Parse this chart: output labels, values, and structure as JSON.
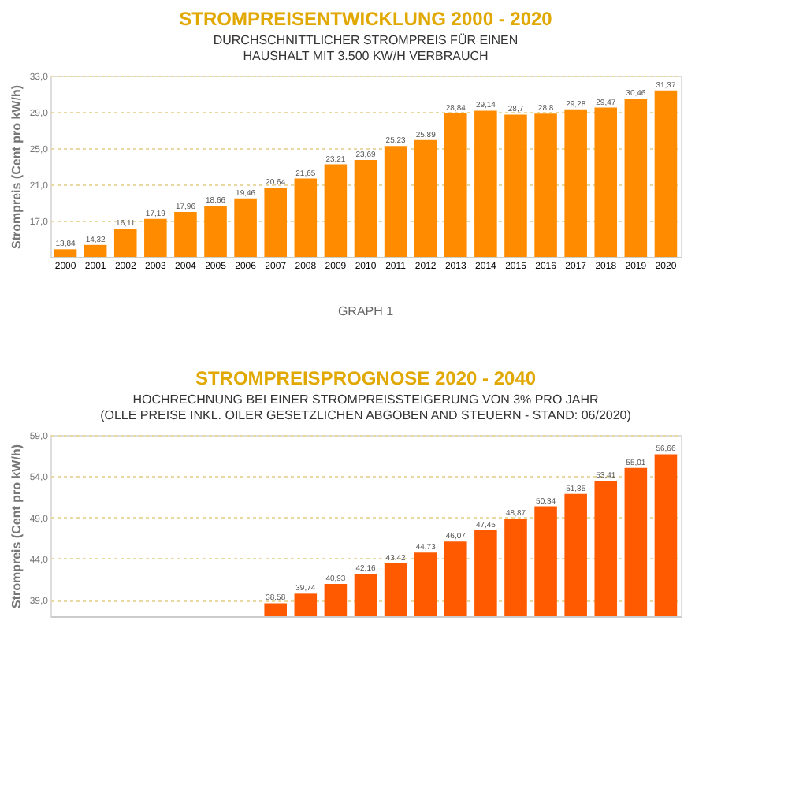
{
  "chart_data": [
    {
      "type": "bar",
      "title": "STROMPREISENTWICKLUNG 2000 - 2020",
      "subtitle": "DURCHSCHNITTLICHER STROMPREIS FÜR EINEN\nHAUSHALT MIT 3.500 KW/H VERBRAUCH",
      "ylabel": "Strompreis (Cent pro kW/h)",
      "categories": [
        "2000",
        "2001",
        "2002",
        "2003",
        "2004",
        "2005",
        "2006",
        "2007",
        "2008",
        "2009",
        "2010",
        "2011",
        "2012",
        "2013",
        "2014",
        "2015",
        "2016",
        "2017",
        "2018",
        "2019",
        "2020"
      ],
      "values": [
        13.84,
        14.32,
        16.11,
        17.19,
        17.96,
        18.66,
        19.46,
        20.64,
        21.65,
        23.21,
        23.69,
        25.23,
        25.89,
        28.84,
        29.14,
        28.7,
        28.8,
        29.28,
        29.47,
        30.46,
        31.37
      ],
      "value_labels": [
        "13,84",
        "14,32",
        "16,11",
        "17,19",
        "17,96",
        "18,66",
        "19,46",
        "20,64",
        "21,65",
        "23,21",
        "23,69",
        "25,23",
        "25,89",
        "28,84",
        "29,14",
        "28,7",
        "28,8",
        "29,28",
        "29,47",
        "30,46",
        "31,37"
      ],
      "color": "#ff8c00",
      "ylim": [
        13,
        33
      ],
      "yticks": [
        {
          "value": 17,
          "label": "17,0"
        },
        {
          "value": 21,
          "label": "21,0"
        },
        {
          "value": 25,
          "label": "25,0"
        },
        {
          "value": 29,
          "label": "29,0"
        },
        {
          "value": 33,
          "label": "33,0"
        }
      ],
      "grid": "y",
      "annotations": [
        "GRAPH 1"
      ]
    },
    {
      "type": "bar",
      "title": "STROMPREISPROGNOSE 2020 - 2040",
      "subtitle": "HOCHRECHNUNG BEI EINER STROMPREISSTEIGERUNG VON 3% PRO JAHR\n(OLLE PREISE INKL. OILER GESETZLICHEN ABGOBEN AND STEUERN - STAND: 06/2020)",
      "ylabel": "Strompreis (Cent pro kW/h)",
      "categories": [
        null,
        null,
        null,
        null,
        null,
        null,
        null,
        null,
        null,
        null,
        null,
        null,
        null,
        null,
        null,
        null,
        null,
        null,
        null,
        null,
        null
      ],
      "values": [
        null,
        null,
        null,
        null,
        null,
        null,
        null,
        38.58,
        39.74,
        40.93,
        42.16,
        43.42,
        44.73,
        46.07,
        47.45,
        48.87,
        50.34,
        51.85,
        53.41,
        55.01,
        56.66
      ],
      "value_labels": [
        null,
        null,
        null,
        null,
        null,
        null,
        null,
        "38,58",
        "39,74",
        "40,93",
        "42,16",
        "43,42",
        "44,73",
        "46,07",
        "47,45",
        "48,87",
        "50,34",
        "51,85",
        "53,41",
        "55,01",
        "56,66"
      ],
      "color": "#ff5a00",
      "ylim": [
        37,
        59
      ],
      "yticks": [
        {
          "value": 39,
          "label": "39,0"
        },
        {
          "value": 44,
          "label": "44,0"
        },
        {
          "value": 49,
          "label": "49,0"
        },
        {
          "value": 54,
          "label": "54,0"
        },
        {
          "value": 59,
          "label": "59,0"
        }
      ],
      "grid": "y",
      "tick_labels": "y"
    }
  ]
}
